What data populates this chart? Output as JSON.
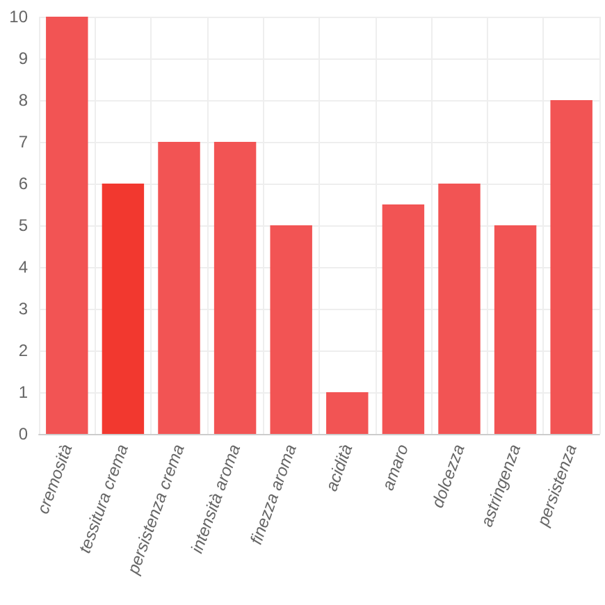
{
  "chart_data": {
    "type": "bar",
    "categories": [
      "cremosità",
      "tessitura crema",
      "persistenza crema",
      "intensità aroma",
      "finezza aroma",
      "acidità",
      "amaro",
      "dolcezza",
      "astringenza",
      "persistenza"
    ],
    "values": [
      10,
      6,
      7,
      7,
      5,
      1,
      5.5,
      6,
      5,
      8
    ],
    "colors": [
      "#f25454",
      "#f2382f",
      "#f25454",
      "#f25454",
      "#f25454",
      "#f25454",
      "#f25454",
      "#f25454",
      "#f25454",
      "#f25454"
    ],
    "ylim": [
      0,
      10
    ],
    "yticks": [
      0,
      1,
      2,
      3,
      4,
      5,
      6,
      7,
      8,
      9,
      10
    ],
    "grid": true
  }
}
